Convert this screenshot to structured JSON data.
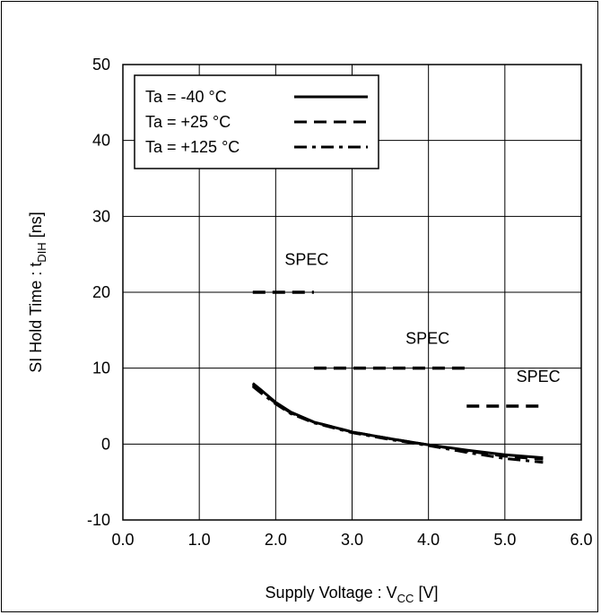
{
  "chart_data": {
    "type": "line",
    "xlabel": {
      "main": "Supply Voltage : V",
      "sub": "CC",
      "unit": " [V]"
    },
    "ylabel": {
      "main": "SI Hold Time : t",
      "sub": "DIH",
      "unit": " [ns]"
    },
    "xlim": [
      0.0,
      6.0
    ],
    "ylim": [
      -10,
      50
    ],
    "x_ticks": [
      "0.0",
      "1.0",
      "2.0",
      "3.0",
      "4.0",
      "5.0",
      "6.0"
    ],
    "y_ticks": [
      "-10",
      "0",
      "10",
      "20",
      "30",
      "40",
      "50"
    ],
    "grid": true,
    "legend_position": "top-left",
    "series": [
      {
        "name": "Ta = -40 °C",
        "style": "solid",
        "x": [
          1.7,
          1.8,
          2.0,
          2.2,
          2.5,
          3.0,
          3.5,
          4.0,
          4.5,
          5.0,
          5.5
        ],
        "y": [
          8.0,
          7.2,
          5.5,
          4.2,
          2.9,
          1.6,
          0.7,
          -0.1,
          -0.8,
          -1.4,
          -1.8
        ]
      },
      {
        "name": "Ta = +25 °C",
        "style": "dashed",
        "x": [
          1.7,
          1.8,
          2.0,
          2.2,
          2.5,
          3.0,
          3.5,
          4.0,
          4.5,
          5.0,
          5.5
        ],
        "y": [
          7.8,
          7.0,
          5.4,
          4.1,
          2.9,
          1.6,
          0.7,
          -0.1,
          -0.9,
          -1.6,
          -2.0
        ]
      },
      {
        "name": "Ta = +125 °C",
        "style": "dashdot",
        "x": [
          1.7,
          1.8,
          2.0,
          2.2,
          2.5,
          3.0,
          3.5,
          4.0,
          4.5,
          5.0,
          5.5
        ],
        "y": [
          7.6,
          6.8,
          5.3,
          4.0,
          2.8,
          1.5,
          0.6,
          -0.2,
          -1.1,
          -1.9,
          -2.4
        ]
      }
    ],
    "spec_lines": [
      {
        "x": [
          1.7,
          2.5
        ],
        "y": 20,
        "label": "SPEC"
      },
      {
        "x": [
          2.5,
          4.5
        ],
        "y": 10,
        "label": "SPEC"
      },
      {
        "x": [
          4.5,
          5.5
        ],
        "y": 5,
        "label": "SPEC"
      }
    ]
  }
}
